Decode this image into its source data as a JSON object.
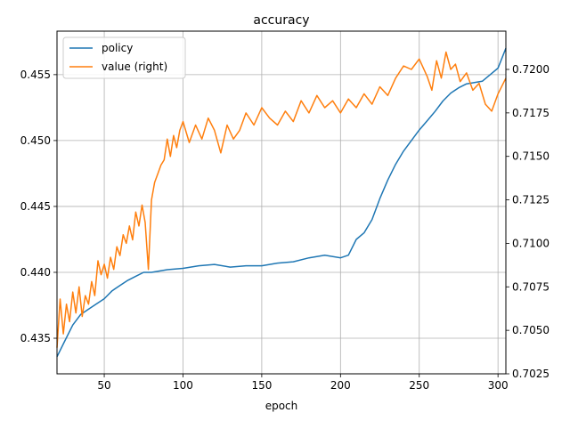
{
  "chart_data": {
    "type": "line",
    "title": "accuracy",
    "xlabel": "epoch",
    "ylabel": "",
    "y2label": "",
    "xlim": [
      20,
      305
    ],
    "ylim": [
      0.4323,
      0.4583
    ],
    "y2lim": [
      0.7025,
      0.7222
    ],
    "x_ticks": [
      50,
      100,
      150,
      200,
      250,
      300
    ],
    "y_ticks": [
      0.435,
      0.44,
      0.445,
      0.45,
      0.455
    ],
    "y_tick_labels": [
      "0.435",
      "0.440",
      "0.445",
      "0.450",
      "0.455"
    ],
    "y2_ticks": [
      0.7025,
      0.705,
      0.7075,
      0.71,
      0.7125,
      0.715,
      0.7175,
      0.72
    ],
    "y2_tick_labels": [
      "0.7025",
      "0.7050",
      "0.7075",
      "0.7100",
      "0.7125",
      "0.7150",
      "0.7175",
      "0.7200"
    ],
    "grid": true,
    "legend_position": "top-left",
    "series": [
      {
        "name": "policy",
        "axis": "left",
        "color": "#1f77b4",
        "x": [
          20,
          25,
          30,
          35,
          40,
          45,
          50,
          55,
          60,
          65,
          70,
          75,
          80,
          90,
          100,
          110,
          120,
          130,
          140,
          150,
          160,
          170,
          180,
          190,
          200,
          205,
          210,
          215,
          220,
          225,
          230,
          235,
          240,
          245,
          250,
          255,
          260,
          265,
          270,
          275,
          280,
          285,
          290,
          295,
          300,
          305
        ],
        "values": [
          0.4336,
          0.4348,
          0.436,
          0.4368,
          0.4372,
          0.4376,
          0.438,
          0.4386,
          0.439,
          0.4394,
          0.4397,
          0.44,
          0.44,
          0.4402,
          0.4403,
          0.4405,
          0.4406,
          0.4404,
          0.4405,
          0.4405,
          0.4407,
          0.4408,
          0.4411,
          0.4413,
          0.4411,
          0.4413,
          0.4425,
          0.443,
          0.444,
          0.4456,
          0.447,
          0.4482,
          0.4492,
          0.45,
          0.4508,
          0.4515,
          0.4522,
          0.453,
          0.4536,
          0.454,
          0.4543,
          0.4544,
          0.4545,
          0.455,
          0.4555,
          0.457
        ]
      },
      {
        "name": "value (right)",
        "axis": "right",
        "color": "#ff7f0e",
        "x": [
          20,
          22,
          24,
          26,
          28,
          30,
          32,
          34,
          36,
          38,
          40,
          42,
          44,
          46,
          48,
          50,
          52,
          54,
          56,
          58,
          60,
          62,
          64,
          66,
          68,
          70,
          72,
          74,
          76,
          78,
          80,
          82,
          84,
          86,
          88,
          90,
          92,
          94,
          96,
          98,
          100,
          104,
          108,
          112,
          116,
          120,
          124,
          128,
          132,
          136,
          140,
          145,
          150,
          155,
          160,
          165,
          170,
          175,
          180,
          185,
          190,
          195,
          200,
          205,
          210,
          215,
          220,
          225,
          230,
          235,
          240,
          245,
          250,
          255,
          258,
          261,
          264,
          267,
          270,
          273,
          276,
          280,
          284,
          288,
          292,
          296,
          300,
          305
        ],
        "values": [
          0.704,
          0.7068,
          0.7048,
          0.7065,
          0.7055,
          0.7072,
          0.706,
          0.7075,
          0.7058,
          0.707,
          0.7065,
          0.7078,
          0.707,
          0.709,
          0.7082,
          0.7088,
          0.708,
          0.7092,
          0.7085,
          0.7098,
          0.7093,
          0.7105,
          0.71,
          0.711,
          0.7102,
          0.7118,
          0.711,
          0.7122,
          0.7112,
          0.7085,
          0.7125,
          0.7135,
          0.714,
          0.7145,
          0.7148,
          0.716,
          0.715,
          0.7162,
          0.7155,
          0.7165,
          0.717,
          0.7158,
          0.7168,
          0.716,
          0.7172,
          0.7165,
          0.7152,
          0.7168,
          0.716,
          0.7165,
          0.7175,
          0.7168,
          0.7178,
          0.7172,
          0.7168,
          0.7176,
          0.717,
          0.7182,
          0.7175,
          0.7185,
          0.7178,
          0.7182,
          0.7175,
          0.7183,
          0.7178,
          0.7186,
          0.718,
          0.719,
          0.7185,
          0.7195,
          0.7202,
          0.72,
          0.7206,
          0.7196,
          0.7188,
          0.7205,
          0.7195,
          0.721,
          0.72,
          0.7203,
          0.7193,
          0.7198,
          0.7188,
          0.7192,
          0.718,
          0.7176,
          0.7186,
          0.7195
        ]
      }
    ]
  }
}
